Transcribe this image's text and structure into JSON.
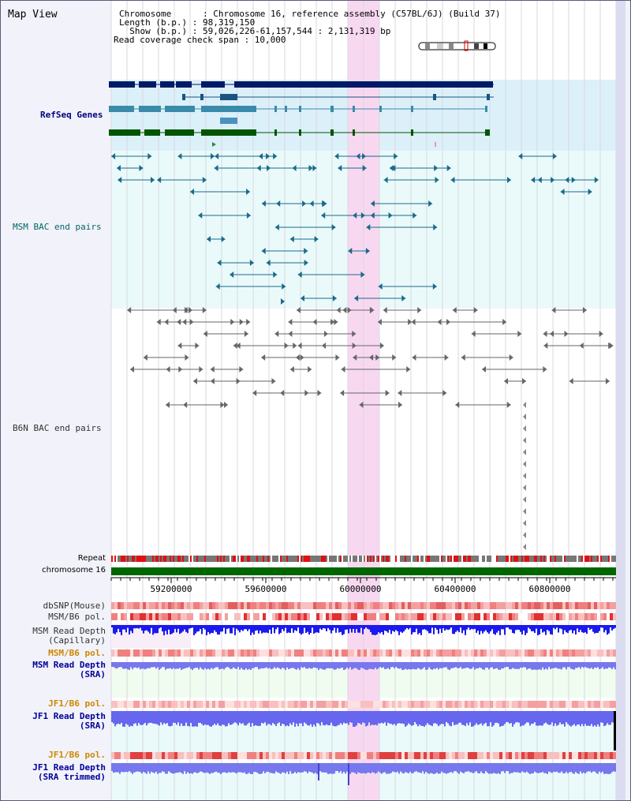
{
  "title": "Map View",
  "info": {
    "chromosome": "Chromosome      : Chromosome 16, reference assembly (C57BL/6J) (Build 37)",
    "length": "Length (b.p.) : 98,319,150",
    "show": "  Show (b.p.) : 59,026,226-61,157,544 : 2,131,319 bp",
    "coverage": "Read coverage check span : 10,000"
  },
  "tracks": {
    "refseq": "RefSeq Genes",
    "msm_bac": "MSM BAC end pairs",
    "b6n_bac": "B6N BAC end pairs",
    "repeat": "Repeat",
    "chromosome": "chromosome 16",
    "dbsnp": "dbSNP(Mouse)",
    "msm_b6_pol": "MSM/B6 pol.",
    "msm_read_depth_cap_1": "MSM Read Depth",
    "msm_read_depth_cap_2": "(Capillary)",
    "msm_b6_pol_sra": "MSM/B6 pol.",
    "msm_read_depth_sra_1": "MSM Read Depth",
    "msm_read_depth_sra_2": "(SRA)",
    "jf1_b6_pol_1": "JF1/B6 pol.",
    "jf1_read_depth_1": "JF1 Read Depth",
    "jf1_read_depth_1b": "(SRA)",
    "jf1_b6_pol_2": "JF1/B6 pol.",
    "jf1_read_depth_2": "JF1 Read Depth",
    "jf1_read_depth_2b": "(SRA trimmed)"
  },
  "axis": {
    "ticks": [
      "59200000",
      "59600000",
      "60000000",
      "60400000",
      "60800000"
    ]
  },
  "colors": {
    "refseq_label": "#000080",
    "msm_label": "#006666",
    "b6n_label": "#333333",
    "orange_label": "#cc8800",
    "blue_label": "#000099",
    "highlight": "#f8d8f0"
  }
}
